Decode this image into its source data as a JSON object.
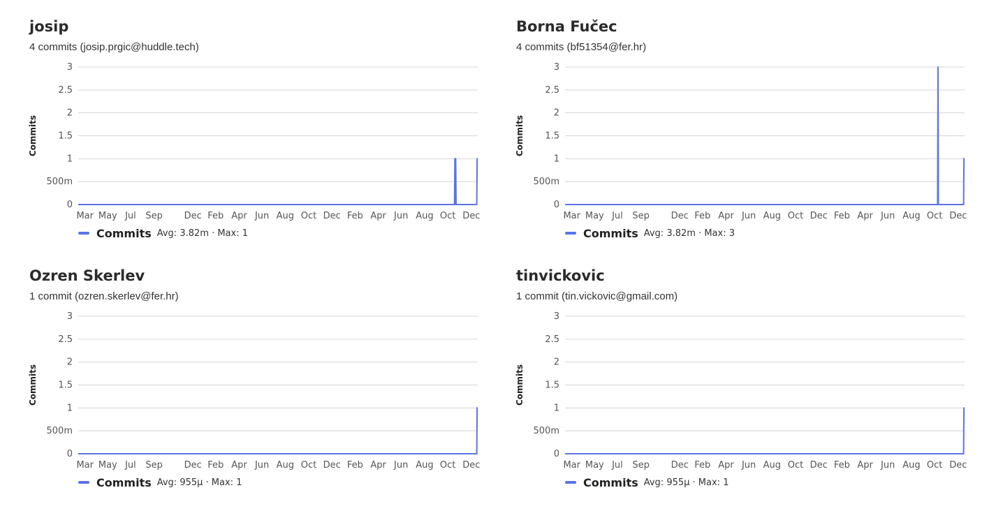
{
  "accent_color": "#5b73e8",
  "contributors": [
    {
      "name": "josip",
      "subtitle": "4 commits (josip.prgic@huddle.tech)",
      "legend": {
        "name": "Commits",
        "stats": "Avg: 3.82m · Max: 1"
      },
      "chart_data": {
        "type": "line",
        "ylabel": "Commits",
        "ylim": [
          0,
          3
        ],
        "y_ticks": [
          "0",
          "500m",
          "1",
          "1.5",
          "2",
          "2.5",
          "3"
        ],
        "x_ticks": [
          "Mar",
          "May",
          "Jul",
          "Sep",
          "Dec",
          "Feb",
          "Apr",
          "Jun",
          "Aug",
          "Oct",
          "Dec",
          "Feb",
          "Apr",
          "Jun",
          "Aug",
          "Oct",
          "Dec"
        ],
        "series": [
          {
            "name": "Commits",
            "values": [
              [
                0,
                0
              ],
              [
                0.9418,
                0
              ],
              [
                0.9428,
                1
              ],
              [
                0.9438,
                0
              ],
              [
                0.9448,
                1
              ],
              [
                0.9458,
                0
              ],
              [
                0.9975,
                0
              ],
              [
                0.9985,
                1
              ],
              [
                1,
                1
              ]
            ]
          }
        ]
      }
    },
    {
      "name": "Borna Fučec",
      "subtitle": "4 commits (bf51354@fer.hr)",
      "legend": {
        "name": "Commits",
        "stats": "Avg: 3.82m · Max: 3"
      },
      "chart_data": {
        "type": "line",
        "ylabel": "Commits",
        "ylim": [
          0,
          3
        ],
        "y_ticks": [
          "0",
          "500m",
          "1",
          "1.5",
          "2",
          "2.5",
          "3"
        ],
        "x_ticks": [
          "Mar",
          "May",
          "Jul",
          "Sep",
          "Dec",
          "Feb",
          "Apr",
          "Jun",
          "Aug",
          "Oct",
          "Dec",
          "Feb",
          "Apr",
          "Jun",
          "Aug",
          "Oct",
          "Dec"
        ],
        "series": [
          {
            "name": "Commits",
            "values": [
              [
                0,
                0
              ],
              [
                0.9325,
                0
              ],
              [
                0.9335,
                3
              ],
              [
                0.9345,
                0
              ],
              [
                0.9975,
                0
              ],
              [
                0.9985,
                1
              ],
              [
                1,
                1
              ]
            ]
          }
        ]
      }
    },
    {
      "name": "Ozren Skerlev",
      "subtitle": "1 commit (ozren.skerlev@fer.hr)",
      "legend": {
        "name": "Commits",
        "stats": "Avg: 955µ · Max: 1"
      },
      "chart_data": {
        "type": "line",
        "ylabel": "Commits",
        "ylim": [
          0,
          3
        ],
        "y_ticks": [
          "0",
          "500m",
          "1",
          "1.5",
          "2",
          "2.5",
          "3"
        ],
        "x_ticks": [
          "Mar",
          "May",
          "Jul",
          "Sep",
          "Dec",
          "Feb",
          "Apr",
          "Jun",
          "Aug",
          "Oct",
          "Dec",
          "Feb",
          "Apr",
          "Jun",
          "Aug",
          "Oct",
          "Dec"
        ],
        "series": [
          {
            "name": "Commits",
            "values": [
              [
                0,
                0
              ],
              [
                0.9975,
                0
              ],
              [
                0.9985,
                1
              ],
              [
                1,
                1
              ]
            ]
          }
        ]
      }
    },
    {
      "name": "tinvickovic",
      "subtitle": "1 commit (tin.vickovic@gmail.com)",
      "legend": {
        "name": "Commits",
        "stats": "Avg: 955µ · Max: 1"
      },
      "chart_data": {
        "type": "line",
        "ylabel": "Commits",
        "ylim": [
          0,
          3
        ],
        "y_ticks": [
          "0",
          "500m",
          "1",
          "1.5",
          "2",
          "2.5",
          "3"
        ],
        "x_ticks": [
          "Mar",
          "May",
          "Jul",
          "Sep",
          "Dec",
          "Feb",
          "Apr",
          "Jun",
          "Aug",
          "Oct",
          "Dec",
          "Feb",
          "Apr",
          "Jun",
          "Aug",
          "Oct",
          "Dec"
        ],
        "series": [
          {
            "name": "Commits",
            "values": [
              [
                0,
                0
              ],
              [
                0.9975,
                0
              ],
              [
                0.9985,
                1
              ],
              [
                1,
                1
              ]
            ]
          }
        ]
      }
    }
  ]
}
